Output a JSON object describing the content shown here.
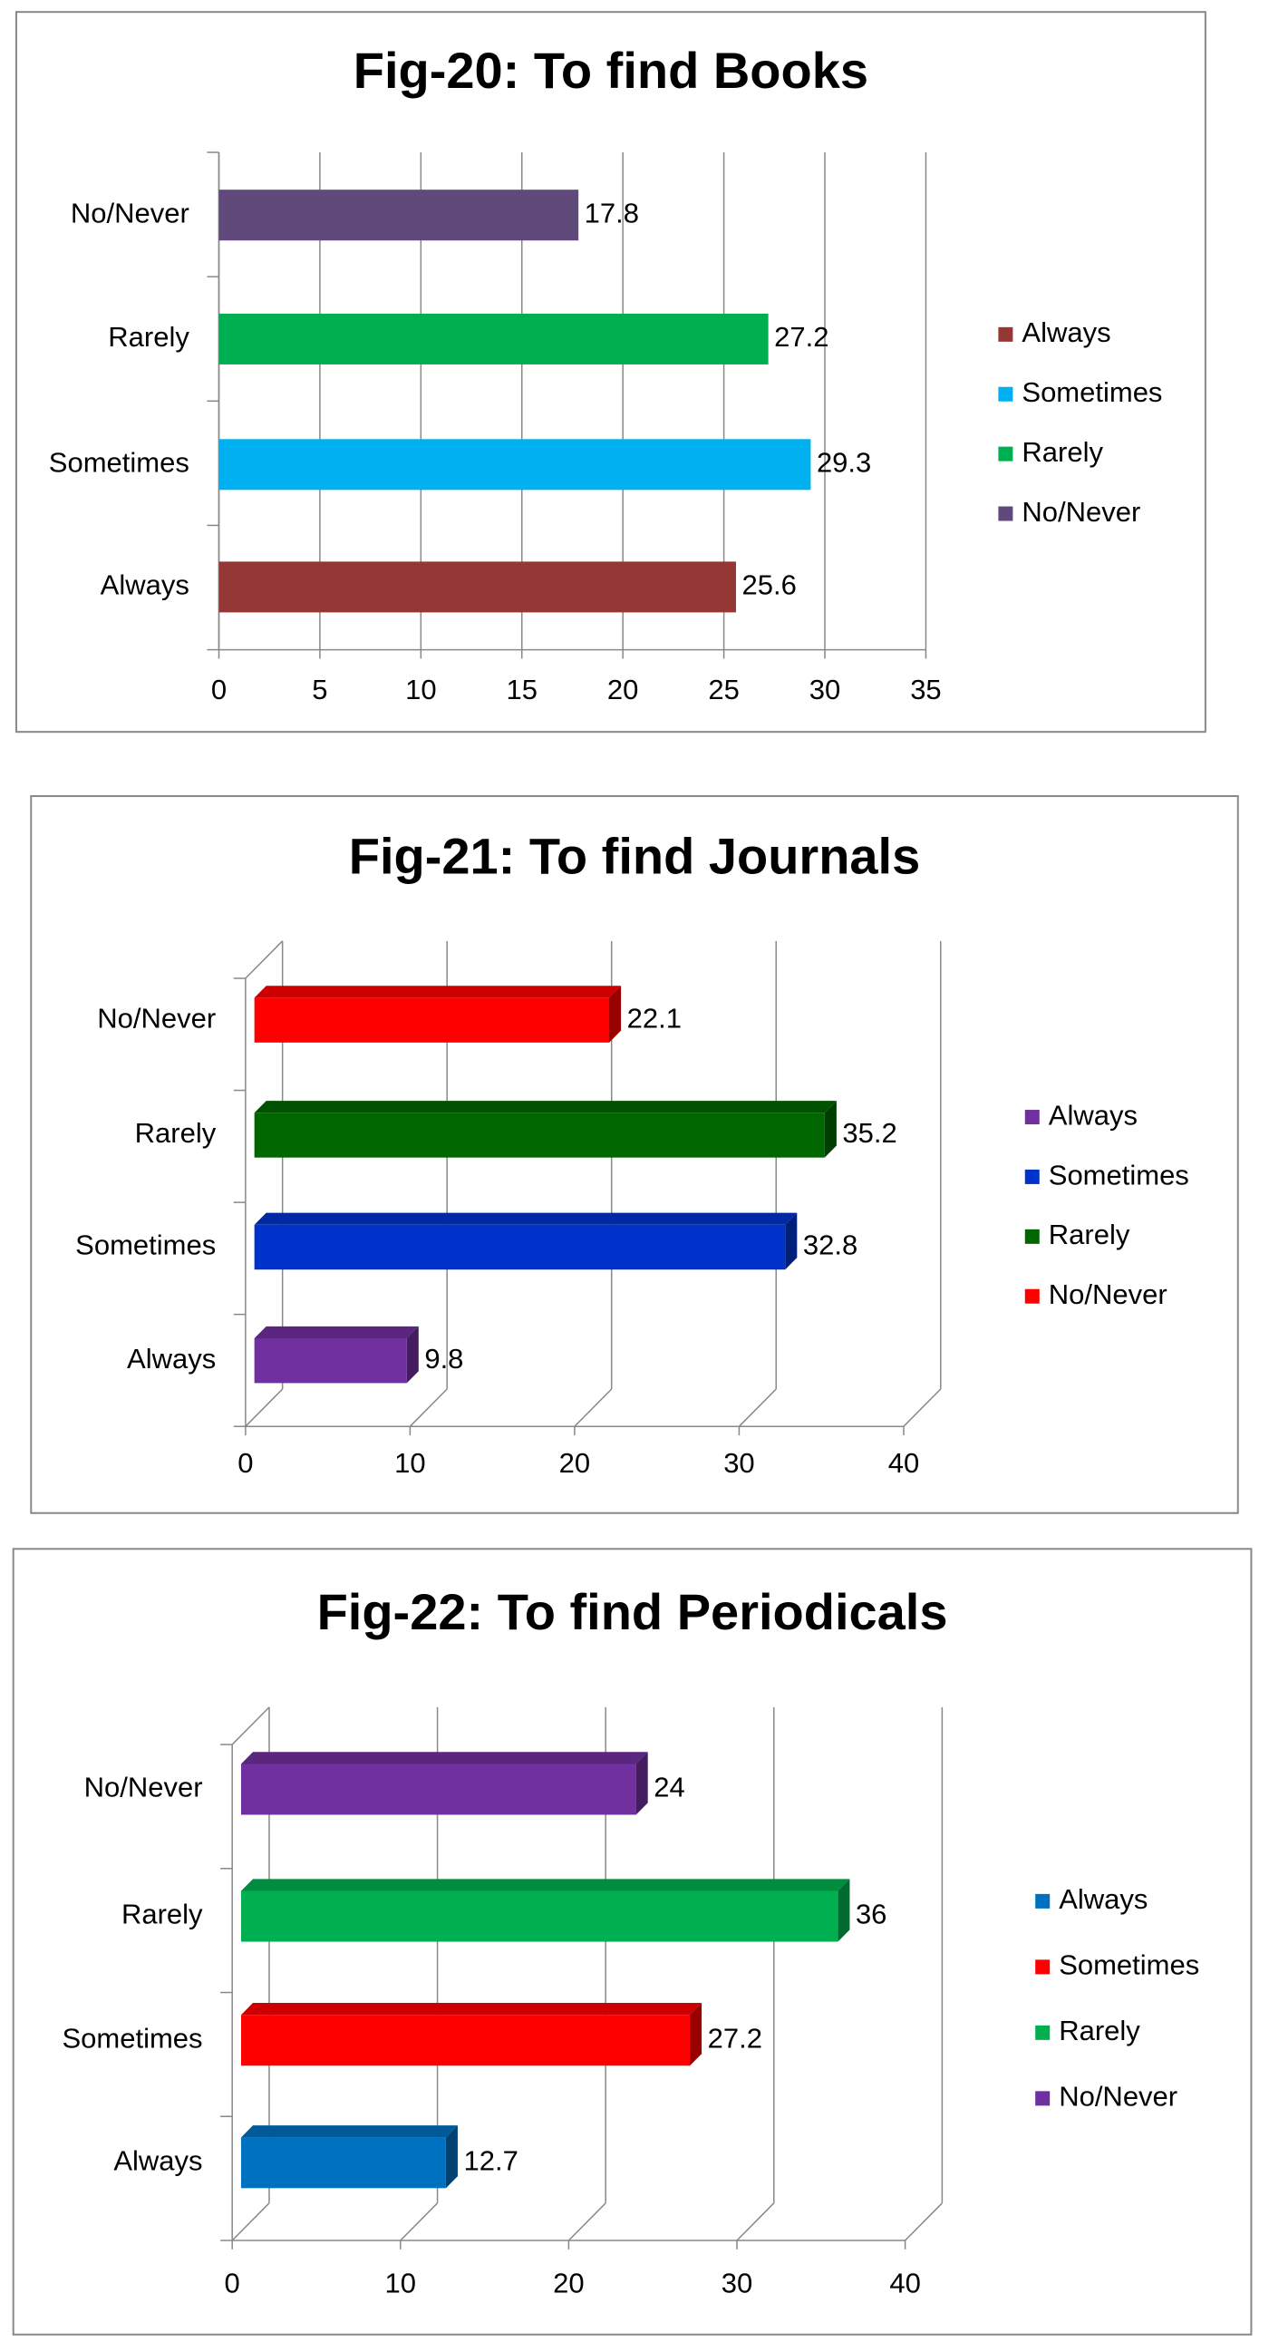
{
  "chart_data": [
    {
      "type": "bar",
      "title": "Fig-20: To find Books",
      "orientation": "horizontal",
      "three_d": false,
      "categories": [
        "Always",
        "Sometimes",
        "Rarely",
        "No/Never"
      ],
      "values": [
        25.6,
        29.3,
        27.2,
        17.8
      ],
      "colors": [
        "#953735",
        "#00b0f0",
        "#00b050",
        "#604a7b"
      ],
      "xlim": [
        0,
        35
      ],
      "xticks": [
        0,
        5,
        10,
        15,
        20,
        25,
        30,
        35
      ],
      "grid": true,
      "legend": "right"
    },
    {
      "type": "bar",
      "title": "Fig-21: To find Journals",
      "orientation": "horizontal",
      "three_d": true,
      "categories": [
        "Always",
        "Sometimes",
        "Rarely",
        "No/Never"
      ],
      "values": [
        9.8,
        32.8,
        35.2,
        22.1
      ],
      "colors": [
        "#7030a0",
        "#0033cc",
        "#006600",
        "#ff0000"
      ],
      "xlim": [
        0,
        40
      ],
      "xticks": [
        0,
        10,
        20,
        30,
        40
      ],
      "grid": true,
      "legend": "right"
    },
    {
      "type": "bar",
      "title": "Fig-22: To find Periodicals",
      "orientation": "horizontal",
      "three_d": true,
      "categories": [
        "Always",
        "Sometimes",
        "Rarely",
        "No/Never"
      ],
      "values": [
        12.7,
        27.2,
        36,
        24
      ],
      "colors": [
        "#0070c0",
        "#ff0000",
        "#00b050",
        "#7030a0"
      ],
      "xlim": [
        0,
        40
      ],
      "xticks": [
        0,
        10,
        20,
        30,
        40
      ],
      "grid": true,
      "legend": "right"
    }
  ]
}
